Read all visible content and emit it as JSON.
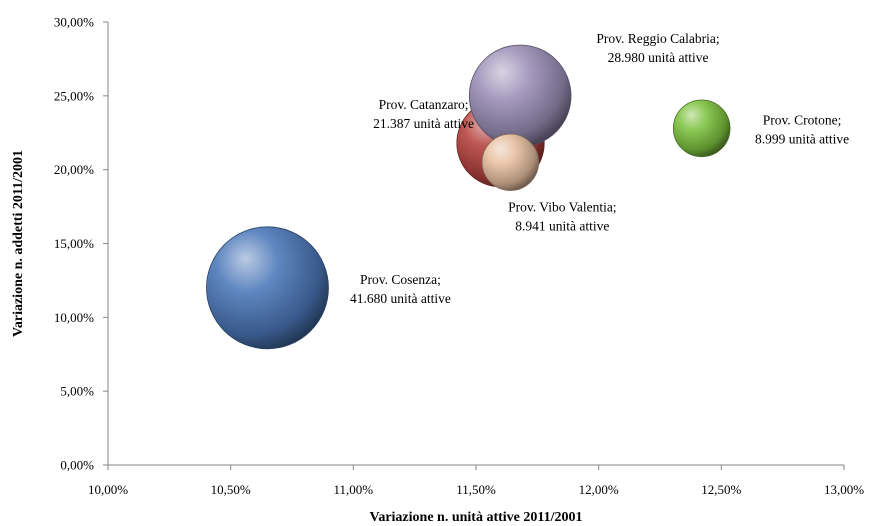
{
  "chart_data": {
    "type": "bubble",
    "xlabel": "Variazione n. unità attive 2011/2001",
    "ylabel": "Variazione n. addetti 2011/2001",
    "xlim": [
      0.1,
      0.13
    ],
    "ylim": [
      0.0,
      0.3
    ],
    "xticks": [
      "10,00%",
      "10,50%",
      "11,00%",
      "11,50%",
      "12,00%",
      "12,50%",
      "13,00%"
    ],
    "yticks": [
      "0,00%",
      "5,00%",
      "10,00%",
      "15,00%",
      "20,00%",
      "25,00%",
      "30,00%"
    ],
    "grid": false,
    "legend": "none",
    "points": [
      {
        "name": "Prov. Cosenza;",
        "size_label": "41.680 unità attive",
        "x": 0.1065,
        "y": 0.12,
        "size": 41680,
        "color": "#4a77b8",
        "label_pos": "right"
      },
      {
        "name": "Prov. Catanzaro;",
        "size_label": "21.387 unità attive",
        "x": 0.116,
        "y": 0.218,
        "size": 21387,
        "color": "#b5413d",
        "label_pos": "left-top"
      },
      {
        "name": "Prov. Reggio Calabria;",
        "size_label": "28.980 unità attive",
        "x": 0.1168,
        "y": 0.25,
        "size": 28980,
        "color": "#9b8fb6",
        "label_pos": "right-top"
      },
      {
        "name": "Prov. Vibo Valentia;",
        "size_label": "8.941 unità attive",
        "x": 0.1164,
        "y": 0.205,
        "size": 8941,
        "color": "#e7bfa0",
        "label_pos": "below"
      },
      {
        "name": "Prov. Crotone;",
        "size_label": "8.999 unità attive",
        "x": 0.1242,
        "y": 0.228,
        "size": 8999,
        "color": "#7cc23e",
        "label_pos": "right"
      }
    ]
  }
}
